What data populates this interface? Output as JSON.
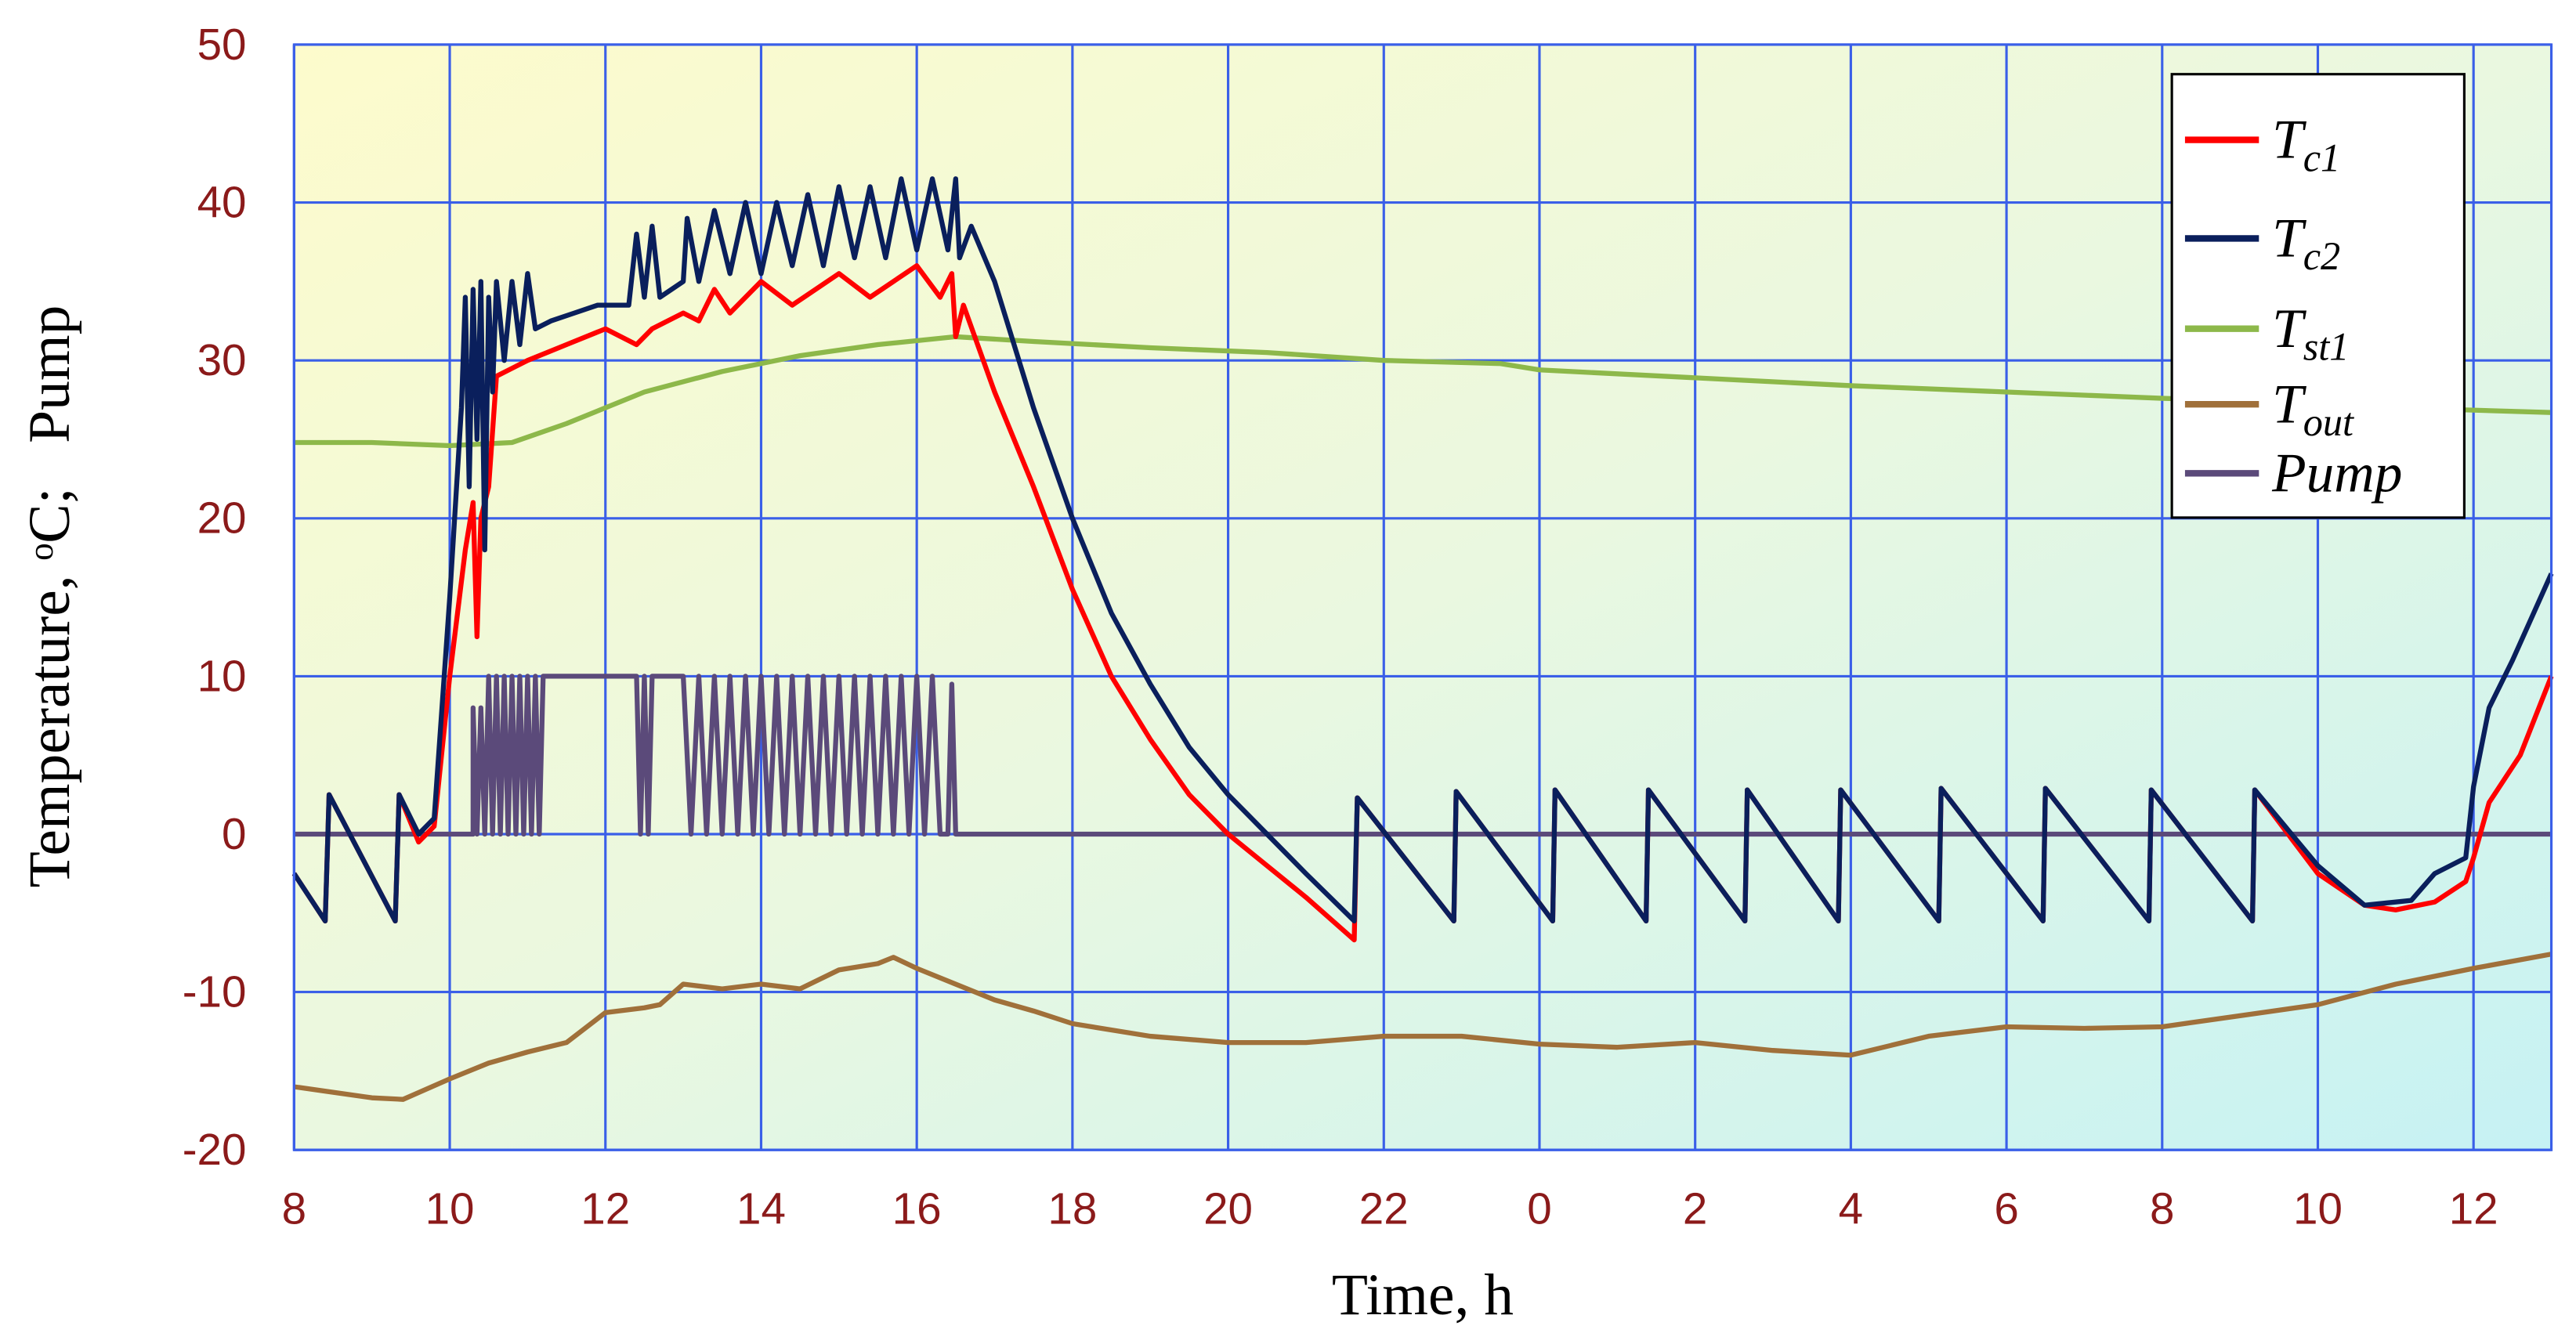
{
  "chart_data": {
    "type": "line",
    "xlabel": "Time, h",
    "ylabel": "Temperature, ᵒC;   Pump",
    "xlim": [
      8,
      37
    ],
    "ylim": [
      -20,
      50
    ],
    "xticks": [
      8,
      10,
      12,
      14,
      16,
      18,
      20,
      22,
      {
        "value": 24,
        "label": "0"
      },
      {
        "value": 26,
        "label": "2"
      },
      {
        "value": 28,
        "label": "4"
      },
      {
        "value": 30,
        "label": "6"
      },
      {
        "value": 32,
        "label": "8"
      },
      {
        "value": 34,
        "label": "10"
      },
      {
        "value": 36,
        "label": "12"
      }
    ],
    "yticks": [
      -20,
      -10,
      0,
      10,
      20,
      30,
      40,
      50
    ],
    "grid": true,
    "legend": "upper right",
    "series": [
      {
        "name": "Tc1",
        "color": "#ff0000",
        "x": [
          8.0,
          8.4,
          8.45,
          9.3,
          9.35,
          9.6,
          9.8,
          10.0,
          10.2,
          10.3,
          10.35,
          10.4,
          10.5,
          10.6,
          10.8,
          11.0,
          11.5,
          12.0,
          12.4,
          12.6,
          13.0,
          13.2,
          13.4,
          13.6,
          14.0,
          14.4,
          15.0,
          15.4,
          16.0,
          16.3,
          16.45,
          16.5,
          16.6,
          17.0,
          17.5,
          18.0,
          18.5,
          19.0,
          19.5,
          20.0,
          20.5,
          21.0,
          21.62,
          21.66,
          22.9,
          22.93,
          24.17,
          24.2,
          25.37,
          25.4,
          26.64,
          26.67,
          27.84,
          27.87,
          29.13,
          29.16,
          30.47,
          30.5,
          31.83,
          31.86,
          33.16,
          33.19,
          34.0,
          34.6,
          35.0,
          35.5,
          35.9,
          36.0,
          36.2,
          36.6,
          37.0
        ],
        "values": [
          -2.5,
          -5.5,
          2.5,
          -5.5,
          2.5,
          -0.5,
          0.5,
          10,
          18,
          21,
          12.5,
          20,
          22,
          29,
          29.5,
          30,
          31,
          32,
          31,
          32,
          33,
          32.5,
          34.5,
          33,
          35,
          33.5,
          35.5,
          34,
          36,
          34,
          35.5,
          31.5,
          33.5,
          28,
          22,
          15.5,
          10,
          6,
          2.5,
          0,
          -2,
          -4,
          -6.7,
          2.3,
          -5.5,
          2.7,
          -5.5,
          2.8,
          -5.5,
          2.8,
          -5.5,
          2.8,
          -5.5,
          2.8,
          -5.5,
          2.9,
          -5.5,
          2.9,
          -5.5,
          2.8,
          -5.5,
          2.8,
          -2.5,
          -4.5,
          -4.8,
          -4.3,
          -3,
          -1.5,
          2,
          5,
          10
        ]
      },
      {
        "name": "Tc2",
        "color": "#0a1f5c",
        "x": [
          8.0,
          8.4,
          8.45,
          9.3,
          9.35,
          9.6,
          9.8,
          10.0,
          10.15,
          10.2,
          10.25,
          10.3,
          10.35,
          10.4,
          10.45,
          10.5,
          10.55,
          10.6,
          10.7,
          10.8,
          10.9,
          11.0,
          11.1,
          11.3,
          11.6,
          11.9,
          12.3,
          12.4,
          12.5,
          12.6,
          12.7,
          13.0,
          13.05,
          13.2,
          13.4,
          13.6,
          13.8,
          14.0,
          14.2,
          14.4,
          14.6,
          14.8,
          15.0,
          15.2,
          15.4,
          15.6,
          15.8,
          16.0,
          16.2,
          16.4,
          16.5,
          16.55,
          16.7,
          17.0,
          17.5,
          18.0,
          18.5,
          19.0,
          19.5,
          20.0,
          20.5,
          21.0,
          21.62,
          21.66,
          22.9,
          22.93,
          24.17,
          24.2,
          25.37,
          25.4,
          26.64,
          26.67,
          27.84,
          27.87,
          29.13,
          29.16,
          30.47,
          30.5,
          31.83,
          31.86,
          33.16,
          33.19,
          34.0,
          34.6,
          35.2,
          35.5,
          35.9,
          36.0,
          36.2,
          36.5,
          37.0
        ],
        "values": [
          -2.5,
          -5.5,
          2.5,
          -5.5,
          2.5,
          0,
          1,
          15,
          27,
          34,
          22,
          34.5,
          25,
          35,
          18,
          34,
          28,
          35,
          30,
          35,
          31,
          35.5,
          32,
          32.5,
          33,
          33.5,
          33.5,
          38,
          34,
          38.5,
          34,
          35,
          39,
          35,
          39.5,
          35.5,
          40,
          35.5,
          40,
          36,
          40.5,
          36,
          41,
          36.5,
          41,
          36.5,
          41.5,
          37,
          41.5,
          37,
          41.5,
          36.5,
          38.5,
          35,
          27,
          20,
          14,
          9.5,
          5.5,
          2.5,
          0,
          -2.5,
          -5.5,
          2.3,
          -5.5,
          2.7,
          -5.5,
          2.8,
          -5.5,
          2.8,
          -5.5,
          2.8,
          -5.5,
          2.8,
          -5.5,
          2.9,
          -5.5,
          2.9,
          -5.5,
          2.8,
          -5.5,
          2.8,
          -2,
          -4.5,
          -4.2,
          -2.5,
          -1.5,
          3,
          8,
          11,
          16.5
        ]
      },
      {
        "name": "Tst1",
        "color": "#8db84a",
        "x": [
          8,
          9,
          10,
          10.8,
          11.5,
          12.5,
          13.5,
          14.5,
          15.5,
          16.5,
          17.5,
          19,
          20.5,
          22,
          23.5,
          24,
          26,
          28,
          30,
          32,
          34,
          35,
          37
        ],
        "values": [
          24.8,
          24.8,
          24.6,
          24.8,
          26,
          28,
          29.3,
          30.3,
          31,
          31.5,
          31.2,
          30.8,
          30.5,
          30,
          29.8,
          29.4,
          28.9,
          28.4,
          28,
          27.6,
          27.3,
          27,
          26.7
        ]
      },
      {
        "name": "Tout",
        "color": "#a0703a",
        "x": [
          8,
          9,
          9.4,
          10,
          10.5,
          11,
          11.5,
          12,
          12.5,
          12.7,
          13,
          13.5,
          14,
          14.5,
          15,
          15.5,
          15.7,
          16,
          16.5,
          17,
          17.5,
          18,
          19,
          20,
          21,
          22,
          23,
          24,
          25,
          26,
          27,
          28,
          29,
          30,
          31,
          32,
          33,
          34,
          35,
          36,
          37
        ],
        "values": [
          -16,
          -16.7,
          -16.8,
          -15.5,
          -14.5,
          -13.8,
          -13.2,
          -11.3,
          -11,
          -10.8,
          -9.5,
          -9.8,
          -9.5,
          -9.8,
          -8.6,
          -8.2,
          -7.8,
          -8.5,
          -9.5,
          -10.5,
          -11.2,
          -12,
          -12.8,
          -13.2,
          -13.2,
          -12.8,
          -12.8,
          -13.3,
          -13.5,
          -13.2,
          -13.7,
          -14,
          -12.8,
          -12.2,
          -12.3,
          -12.2,
          -11.5,
          -10.8,
          -9.5,
          -8.5,
          -7.6
        ]
      },
      {
        "name": "Pump",
        "color": "#5b4a7a",
        "x": [
          8,
          10.3,
          10.3,
          10.35,
          10.4,
          10.45,
          10.5,
          10.55,
          10.6,
          10.65,
          10.7,
          10.75,
          10.8,
          10.85,
          10.9,
          10.95,
          11.0,
          11.05,
          11.1,
          11.15,
          11.2,
          12.4,
          12.45,
          12.5,
          12.55,
          12.6,
          13.0,
          13.1,
          13.2,
          13.3,
          13.4,
          13.5,
          13.6,
          13.7,
          13.8,
          13.9,
          14.0,
          14.1,
          14.2,
          14.3,
          14.4,
          14.5,
          14.6,
          14.7,
          14.8,
          14.9,
          15.0,
          15.1,
          15.2,
          15.3,
          15.4,
          15.5,
          15.6,
          15.7,
          15.8,
          15.9,
          16.0,
          16.1,
          16.2,
          16.3,
          16.4,
          16.45,
          16.5,
          37
        ],
        "values": [
          0,
          0,
          8,
          0,
          8,
          0,
          10,
          0,
          10,
          0,
          10,
          0,
          10,
          0,
          10,
          0,
          10,
          0,
          10,
          0,
          10,
          10,
          0,
          10,
          0,
          10,
          10,
          0,
          10,
          0,
          10,
          0,
          10,
          0,
          10,
          0,
          10,
          0,
          10,
          0,
          10,
          0,
          10,
          0,
          10,
          0,
          10,
          0,
          10,
          0,
          10,
          0,
          10,
          0,
          10,
          0,
          10,
          0,
          10,
          0,
          0,
          9.5,
          0,
          0
        ]
      }
    ]
  }
}
